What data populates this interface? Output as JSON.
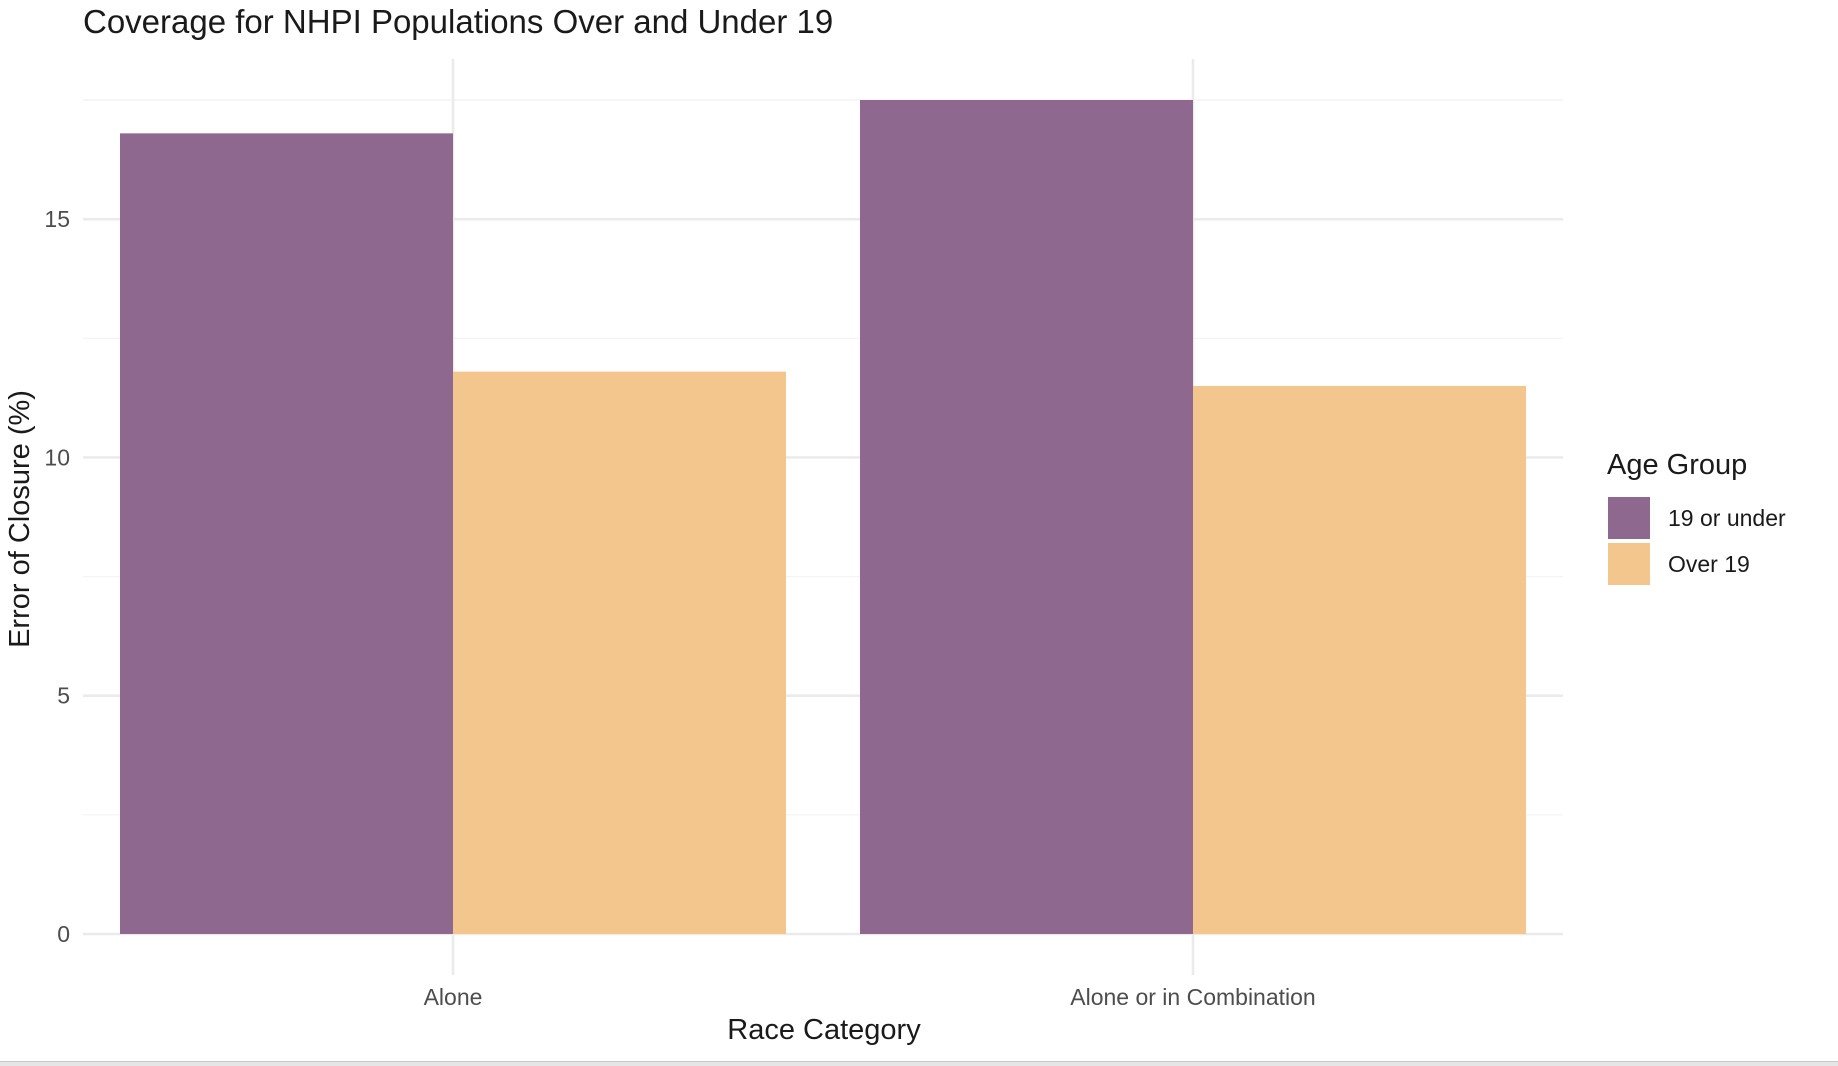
{
  "chart_data": {
    "type": "bar",
    "title": "Coverage for NHPI Populations Over and Under 19",
    "xlabel": "Race Category",
    "ylabel": "Error of Closure (%)",
    "categories": [
      "Alone",
      "Alone or in Combination"
    ],
    "series": [
      {
        "name": "19 or under",
        "color": "#8f6890",
        "values": [
          16.8,
          17.5
        ]
      },
      {
        "name": "Over 19",
        "color": "#f2c68d",
        "values": [
          11.8,
          11.5
        ]
      }
    ],
    "ylim": [
      0,
      17.5
    ],
    "yticks": [
      0,
      5,
      10,
      15
    ],
    "yticklabels": [
      "0",
      "5",
      "10",
      "15"
    ],
    "grid": true,
    "legend": {
      "title": "Age Group",
      "position": "right"
    }
  }
}
